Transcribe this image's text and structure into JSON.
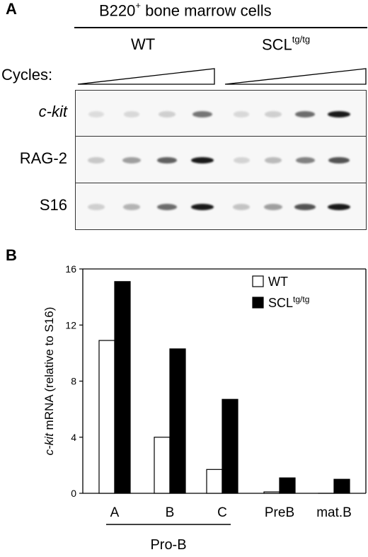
{
  "panel_a": {
    "letter": "A",
    "title": "B220",
    "title_sup": "+",
    "title_rest": " bone marrow cells",
    "group_wt": "WT",
    "group_scl": "SCL",
    "group_scl_sup": "tg/tg",
    "cycles_label": "Cycles:",
    "gel_rows": [
      {
        "label": "c-kit",
        "wt": [
          0.05,
          0.08,
          0.12,
          0.55
        ],
        "scl": [
          0.08,
          0.12,
          0.6,
          1.0
        ]
      },
      {
        "label": "RAG-2",
        "wt": [
          0.15,
          0.35,
          0.65,
          1.0
        ],
        "scl": [
          0.1,
          0.22,
          0.5,
          0.72
        ]
      },
      {
        "label": "S16",
        "wt": [
          0.12,
          0.25,
          0.6,
          1.0
        ],
        "scl": [
          0.18,
          0.35,
          0.72,
          1.0
        ]
      }
    ]
  },
  "panel_b": {
    "letter": "B"
  },
  "chart_data": {
    "type": "bar",
    "categories": [
      "A",
      "B",
      "C",
      "PreB",
      "mat.B"
    ],
    "category_group": {
      "label": "Pro-B",
      "members": [
        "A",
        "B",
        "C"
      ]
    },
    "series": [
      {
        "name": "WT",
        "color": "#ffffff",
        "values": [
          10.9,
          4.0,
          1.7,
          0.1,
          0.0
        ]
      },
      {
        "name": "SCL",
        "name_sup": "tg/tg",
        "color": "#000000",
        "values": [
          15.1,
          10.3,
          6.7,
          1.1,
          1.0
        ]
      }
    ],
    "ylabel_italic": "c-kit",
    "ylabel_rest": " mRNA (relative to S16)",
    "ylim": [
      0,
      16
    ],
    "yticks": [
      0,
      4,
      8,
      12,
      16
    ],
    "legend_position": "top-right",
    "grid": false
  }
}
